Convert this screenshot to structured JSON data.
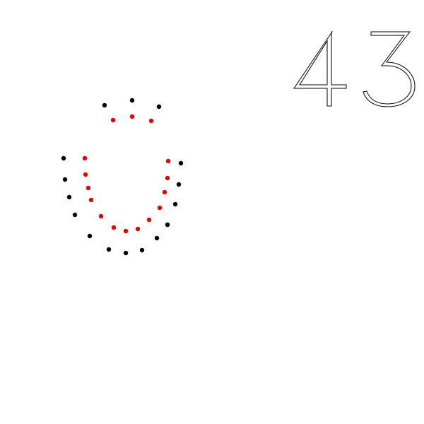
{
  "number_label": "43",
  "colors": {
    "outer_dots": "#000000",
    "inner_dots": "#e00000",
    "background": "#ffffff"
  },
  "figure": {
    "description_icon": "dotted-u-shape"
  }
}
